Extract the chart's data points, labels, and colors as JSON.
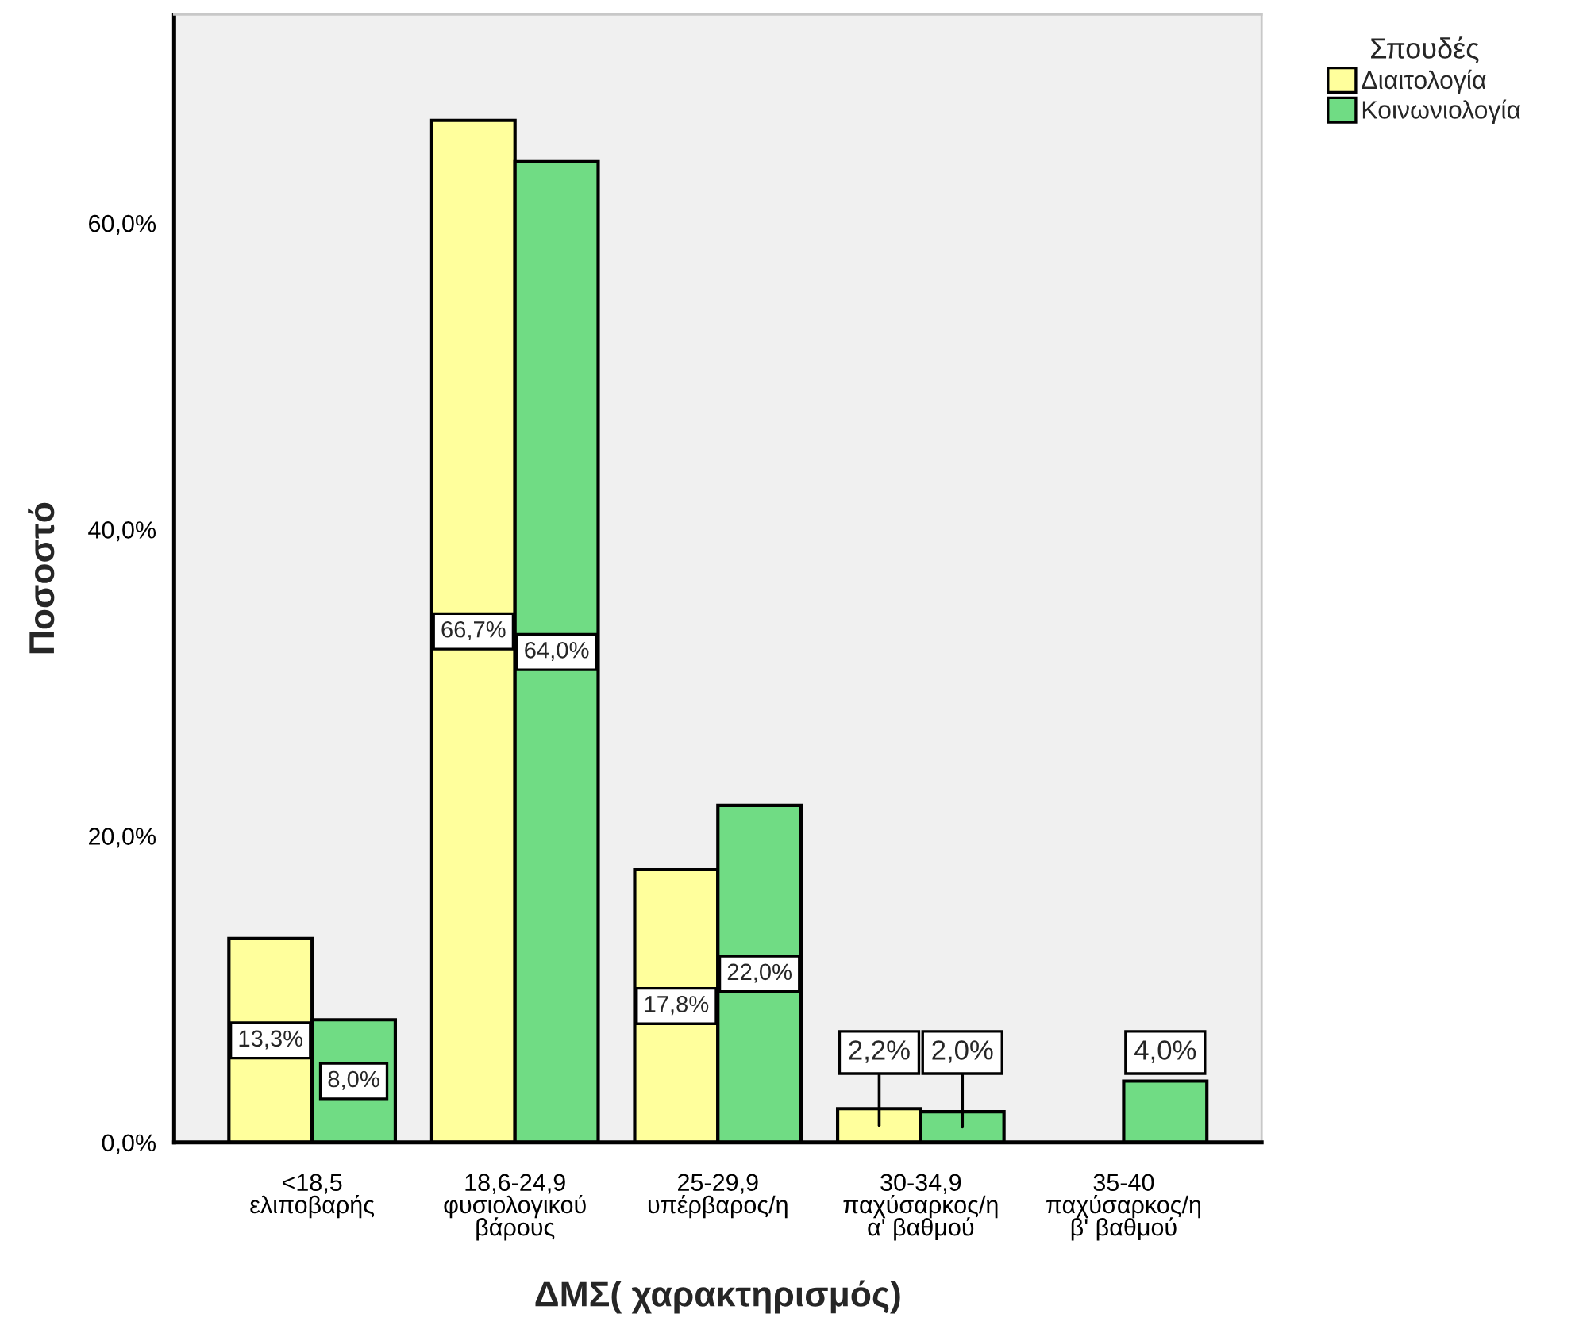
{
  "chart_data": {
    "type": "bar",
    "xlabel": "ΔΜΣ( χαρακτηρισμός)",
    "ylabel": "Ποσοστό",
    "legend_title": "Σπουδές",
    "legend": "top right",
    "grid": false,
    "categories": [
      "<18,5\nελιποβαρής",
      "18,6-24,9\nφυσιολογικού\nβάρους",
      "25-29,9\nυπέρβαρος/η",
      "30-34,9\nπαχύσαρκος/η\nα' βαθμού",
      "35-40\nπαχύσαρκος/η\nβ' βαθμού"
    ],
    "series": [
      {
        "name": "Διαιτολογία",
        "color": "#ffff9c",
        "values": [
          13.3,
          66.7,
          17.8,
          2.2,
          null
        ],
        "value_labels": [
          "13,3%",
          "66,7%",
          "17,8%",
          "2,2%",
          null
        ]
      },
      {
        "name": "Κοινωνιολογία",
        "color": "#70dc84",
        "values": [
          8.0,
          64.0,
          22.0,
          2.0,
          4.0
        ],
        "value_labels": [
          "8,0%",
          "64,0%",
          "22,0%",
          "2,0%",
          "4,0%"
        ]
      }
    ],
    "ylim": [
      0,
      73.6
    ],
    "yticks": [
      {
        "value": 0,
        "label": "0,0%"
      },
      {
        "value": 20,
        "label": "20,0%"
      },
      {
        "value": 40,
        "label": "40,0%"
      },
      {
        "value": 60,
        "label": "60,0%"
      }
    ]
  }
}
